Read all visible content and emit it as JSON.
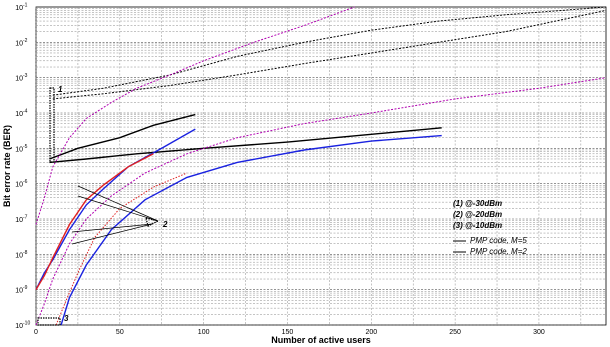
{
  "chart_data": {
    "type": "line",
    "title": "",
    "xlabel": "Number of active users",
    "ylabel": "Bit error rate (BER)",
    "xlim": [
      0,
      340
    ],
    "ylim_exponents": [
      -10,
      -1
    ],
    "yscale": "log",
    "grid": true,
    "x_ticks": [
      "0",
      "50",
      "100",
      "150",
      "200",
      "250",
      "300"
    ],
    "y_ticks": [
      {
        "base": "10",
        "exp": "-1"
      },
      {
        "base": "10",
        "exp": "-2"
      },
      {
        "base": "10",
        "exp": "-3"
      },
      {
        "base": "10",
        "exp": "-4"
      },
      {
        "base": "10",
        "exp": "-5"
      },
      {
        "base": "10",
        "exp": "-6"
      },
      {
        "base": "10",
        "exp": "-7"
      },
      {
        "base": "10",
        "exp": "-8"
      },
      {
        "base": "10",
        "exp": "-9"
      },
      {
        "base": "10",
        "exp": "-10"
      }
    ],
    "annotations": [
      {
        "text": "(1) @-30dBm"
      },
      {
        "text": "(2) @-20dBm"
      },
      {
        "text": "(3) @-10dBm"
      }
    ],
    "legend": {
      "placement": "right",
      "entries": [
        "PMP code, M=5",
        "PMP code, M=2"
      ]
    },
    "group_markers": [
      "1",
      "2",
      "3"
    ],
    "colors": {
      "black": "#000000",
      "magenta": "#b000b0",
      "blue": "#1a22e0",
      "red": "#e02020"
    },
    "series": [
      {
        "style": "black-dotted",
        "color": "#000000",
        "dash": "2,1.5",
        "x": [
          10,
          40,
          80,
          120,
          160,
          200,
          240,
          280,
          340
        ],
        "y": [
          0.00032,
          0.0005,
          0.0012,
          0.004,
          0.01,
          0.022,
          0.04,
          0.06,
          0.1
        ]
      },
      {
        "style": "black-dotted",
        "color": "#000000",
        "dash": "2,1.5",
        "x": [
          10,
          40,
          80,
          120,
          160,
          200,
          240,
          280,
          340
        ],
        "y": [
          0.00025,
          0.00035,
          0.0006,
          0.0012,
          0.0025,
          0.005,
          0.01,
          0.02,
          0.08
        ]
      },
      {
        "style": "black-solid",
        "color": "#000000",
        "dash": "",
        "x": [
          8,
          30,
          60,
          100,
          150,
          200,
          242
        ],
        "y": [
          4e-06,
          5e-06,
          7e-06,
          1e-05,
          1.5e-05,
          2.5e-05,
          3.8e-05
        ]
      },
      {
        "style": "black-solid",
        "color": "#000000",
        "dash": "",
        "x": [
          8,
          25,
          50,
          70,
          95
        ],
        "y": [
          5e-06,
          1e-05,
          2e-05,
          4.5e-05,
          9e-05
        ]
      },
      {
        "style": "magenta-dotted",
        "color": "#b000b0",
        "dash": "2,1.5",
        "x": [
          0,
          5,
          10,
          20,
          30,
          45,
          60,
          80,
          100,
          130,
          160,
          190
        ],
        "y": [
          7e-08,
          4e-07,
          3e-06,
          2e-05,
          7e-05,
          0.0002,
          0.0005,
          0.0012,
          0.003,
          0.01,
          0.03,
          0.1
        ]
      },
      {
        "style": "magenta-dotted",
        "color": "#b000b0",
        "dash": "2,1.5",
        "x": [
          0,
          5,
          10,
          20,
          30,
          45,
          65,
          90,
          120,
          160,
          200,
          250,
          300,
          340
        ],
        "y": [
          1e-10,
          4e-10,
          2e-09,
          2e-08,
          1e-07,
          4.5e-07,
          2e-06,
          7e-06,
          2e-05,
          5e-05,
          0.0001,
          0.00025,
          0.0005,
          0.001
        ]
      },
      {
        "style": "blue-solid",
        "color": "#1a22e0",
        "dash": "",
        "x": [
          0,
          5,
          10,
          20,
          30,
          40,
          55,
          75,
          95
        ],
        "y": [
          1e-09,
          3e-09,
          7e-09,
          5e-08,
          2.5e-07,
          7e-07,
          3e-06,
          1e-05,
          3.5e-05
        ]
      },
      {
        "style": "red-solid",
        "color": "#e02020",
        "dash": "",
        "x": [
          0,
          5,
          10,
          20,
          30,
          40,
          55,
          70
        ],
        "y": [
          1e-09,
          2.5e-09,
          8e-09,
          7e-08,
          3.5e-07,
          9e-07,
          3e-06,
          7e-06
        ]
      },
      {
        "style": "blue-solid",
        "color": "#1a22e0",
        "dash": "",
        "x": [
          15,
          20,
          30,
          45,
          65,
          90,
          120,
          160,
          200,
          242
        ],
        "y": [
          1e-10,
          6e-10,
          5e-09,
          5e-08,
          3.5e-07,
          1.5e-06,
          4e-06,
          9e-06,
          1.6e-05,
          2.3e-05
        ]
      },
      {
        "style": "red-dotted",
        "color": "#e02020",
        "dash": "1.5,1.5",
        "x": [
          12,
          18,
          25,
          35,
          50,
          70,
          90
        ],
        "y": [
          1e-10,
          5e-10,
          3e-09,
          3e-08,
          2e-07,
          8e-07,
          2e-06
        ]
      }
    ]
  }
}
